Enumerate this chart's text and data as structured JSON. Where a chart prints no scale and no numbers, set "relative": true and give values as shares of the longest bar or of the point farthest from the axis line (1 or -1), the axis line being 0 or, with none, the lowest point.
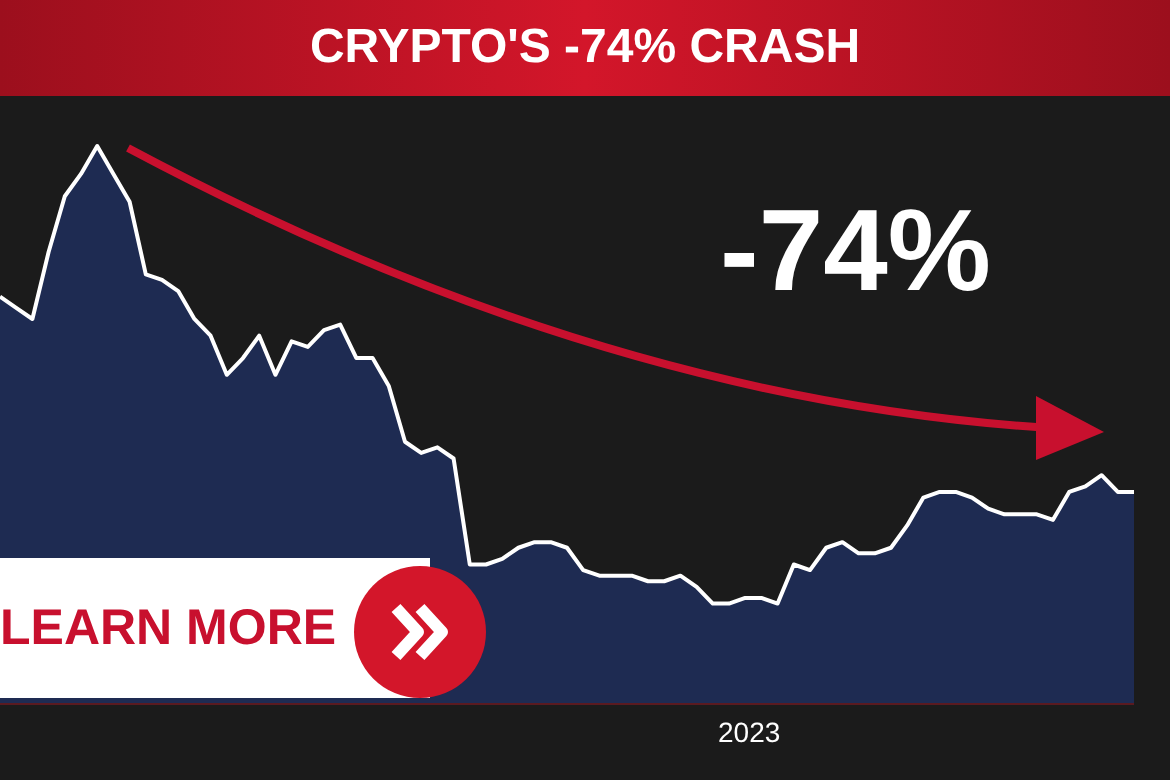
{
  "chart_data": {
    "type": "area",
    "title": "CRYPTO'S -74% CRASH",
    "relative": true,
    "categories": [
      null,
      null,
      null,
      null,
      null,
      null,
      null,
      null,
      null,
      null,
      null,
      null,
      null,
      null,
      null,
      null,
      null,
      null,
      null,
      null,
      null,
      null,
      null,
      null,
      null,
      null,
      null,
      null,
      null,
      null,
      null,
      null,
      null,
      null,
      null,
      null,
      null,
      null,
      null,
      null,
      null,
      null,
      null,
      null,
      null,
      null,
      null,
      null,
      null,
      null,
      null,
      null,
      null,
      null,
      null,
      null,
      null,
      null,
      null,
      null,
      null,
      null,
      null,
      null,
      null,
      null,
      null,
      null,
      null,
      null,
      null
    ],
    "series": [
      {
        "color": "#1e2b52",
        "values": [
          0.73,
          0.71,
          0.69,
          0.81,
          0.91,
          0.95,
          1,
          0.95,
          0.9,
          0.77,
          0.76,
          0.74,
          0.69,
          0.66,
          0.59,
          0.62,
          0.66,
          0.59,
          0.65,
          0.64,
          0.67,
          0.68,
          0.62,
          0.62,
          0.57,
          0.47,
          0.45,
          0.46,
          0.44,
          0.25,
          0.25,
          0.26,
          0.28,
          0.29,
          0.29,
          0.28,
          0.24,
          0.23,
          0.23,
          0.23,
          0.22,
          0.22,
          0.23,
          0.21,
          0.18,
          0.18,
          0.19,
          0.19,
          0.18,
          0.25,
          0.24,
          0.28,
          0.29,
          0.27,
          0.27,
          0.28,
          0.32,
          0.37,
          0.38,
          0.38,
          0.37,
          0.35,
          0.34,
          0.34,
          0.34,
          0.33,
          0.38,
          0.39,
          0.41,
          0.38,
          0.38
        ]
      }
    ],
    "annotations": [
      "-74%",
      "LEARN MORE",
      "2023"
    ]
  }
}
